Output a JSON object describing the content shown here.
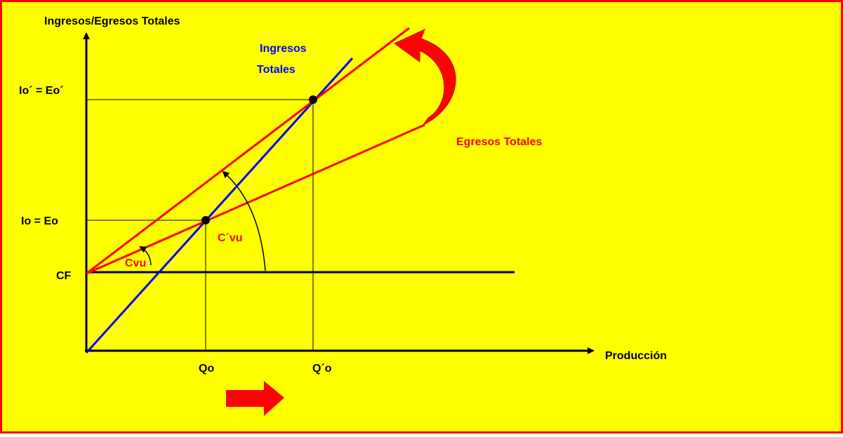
{
  "y_axis_label": "Ingresos/Egresos Totales",
  "x_axis_label": "Producción",
  "ingresos_label": [
    "Ingresos",
    "Totales"
  ],
  "egresos_label": "Egresos Totales",
  "y_marks": [
    "Io´ = Eo´",
    "Io = Eo",
    "CF"
  ],
  "x_marks": [
    "Qo",
    "Q´o"
  ],
  "angle_labels": [
    "C´vu",
    "Cvu"
  ]
}
